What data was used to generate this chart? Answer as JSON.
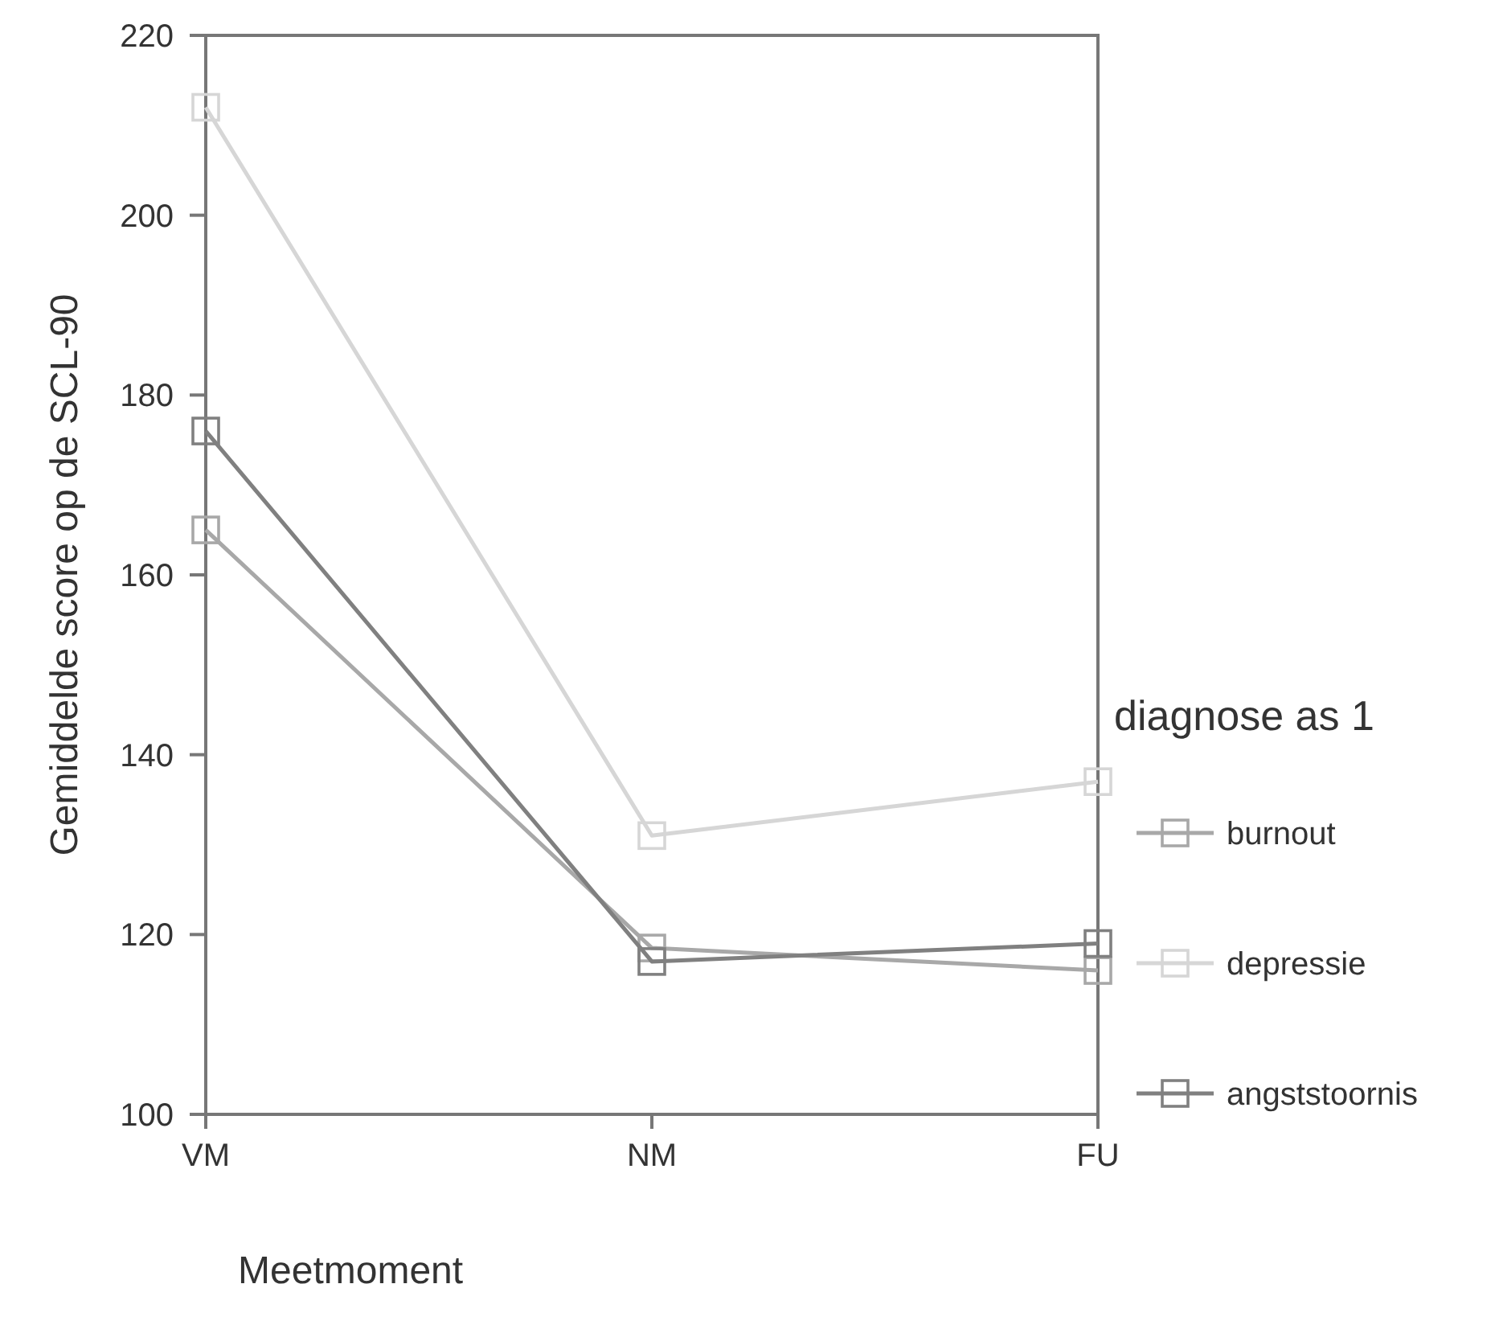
{
  "chart_data": {
    "type": "line",
    "xlabel": "Meetmoment",
    "ylabel": "Gemiddelde score op de SCL-90",
    "legend_title": "diagnose as 1",
    "categories": [
      "VM",
      "NM",
      "FU"
    ],
    "series": [
      {
        "name": "burnout",
        "color": "#a8a8a8",
        "values": [
          165,
          118.5,
          116
        ]
      },
      {
        "name": "depressie",
        "color": "#d6d6d6",
        "values": [
          212,
          131,
          137
        ]
      },
      {
        "name": "angststoornis",
        "color": "#808080",
        "values": [
          176,
          117,
          119
        ]
      }
    ],
    "ylim": [
      100,
      220
    ],
    "yticks": [
      100,
      120,
      140,
      160,
      180,
      200,
      220
    ],
    "grid": false,
    "legend": "right",
    "marker": "square",
    "line_style": "solid"
  }
}
